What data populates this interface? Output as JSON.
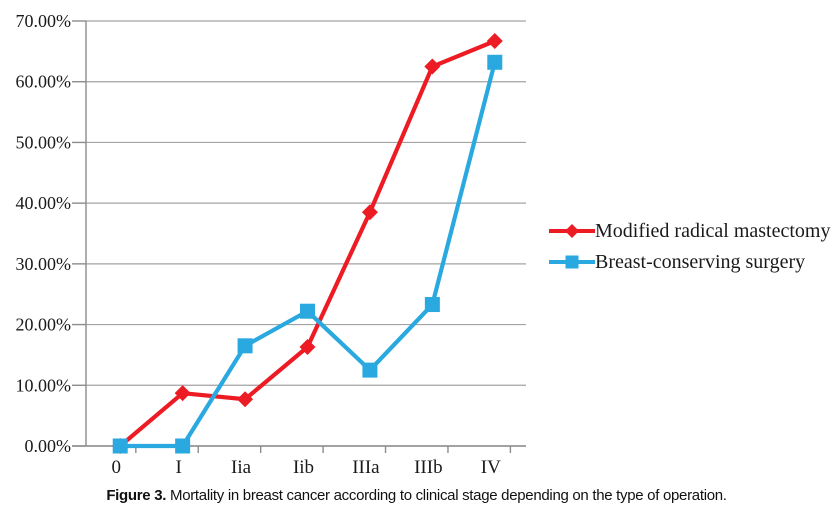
{
  "figure": {
    "caption_label": "Figure 3.",
    "caption_text": " Mortality in breast cancer according to clinical stage depending on the type of operation."
  },
  "chart_data": {
    "type": "line",
    "title": "",
    "xlabel": "",
    "ylabel": "",
    "categories": [
      "0",
      "I",
      "Iia",
      "Iib",
      "IIIa",
      "IIIb",
      "IV"
    ],
    "series": [
      {
        "name": "Modified radical mastectomy",
        "marker": "diamond",
        "color": "#ED1C24",
        "values": [
          0,
          8.7,
          7.7,
          16.3,
          38.5,
          62.5,
          66.7
        ]
      },
      {
        "name": "Breast-conserving surgery",
        "marker": "square",
        "color": "#29A9DF",
        "values": [
          0,
          0,
          16.5,
          22.2,
          12.5,
          23.3,
          63.2
        ]
      }
    ],
    "ylim": [
      0,
      70
    ],
    "ytick_step": 10,
    "ytick_labels": [
      "0.00%",
      "10.00%",
      "20.00%",
      "30.00%",
      "40.00%",
      "50.00%",
      "60.00%",
      "70.00%"
    ],
    "grid": "horizontal",
    "legend_position": "right-middle",
    "colors": {
      "gridline": "#A3A3A3",
      "axis": "#8C8C8C",
      "text": "#1A1A1A"
    }
  }
}
